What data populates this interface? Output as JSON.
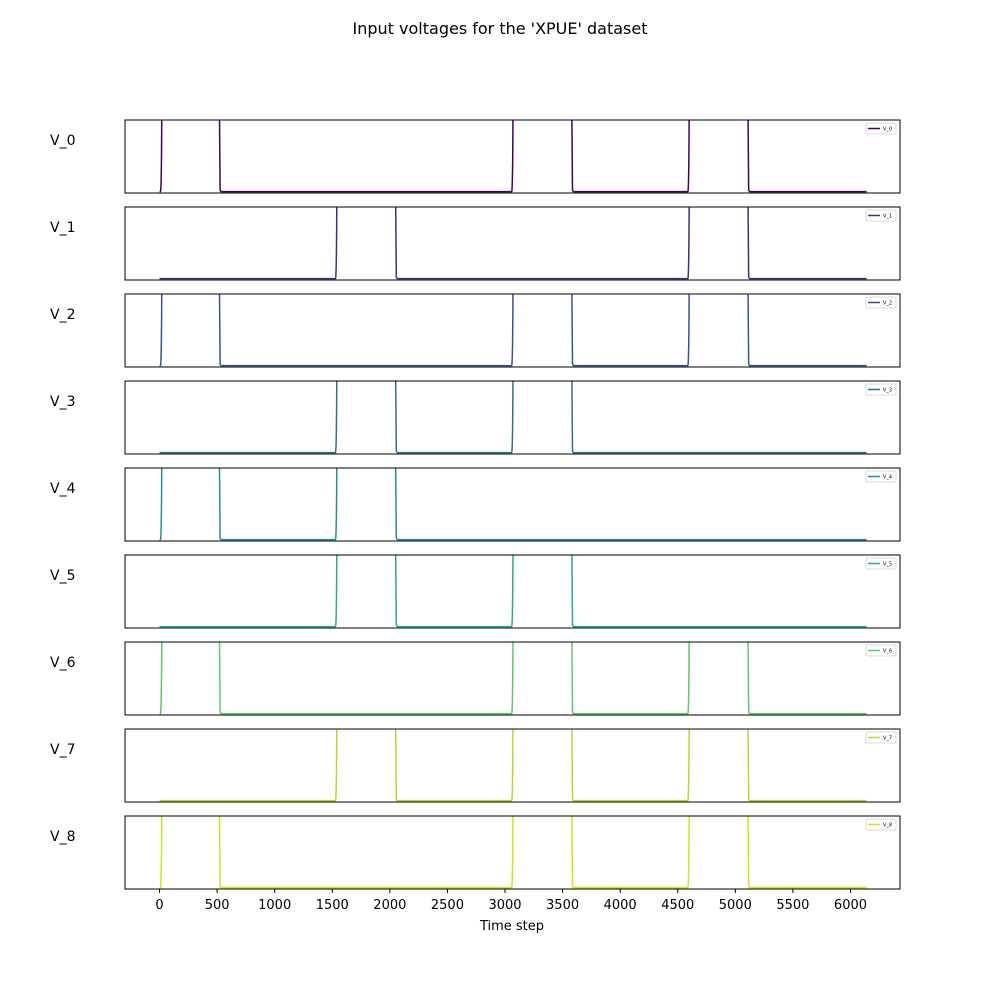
{
  "chart_data": {
    "type": "line",
    "title": "Input voltages for the 'XPUE' dataset",
    "xlabel": "Time step",
    "xlim": [
      -300,
      6430
    ],
    "ylim": [
      -0.02,
      1.0
    ],
    "grid": false,
    "legend_placement": "top-right",
    "xticks": [
      0,
      500,
      1000,
      1500,
      2000,
      2500,
      3000,
      3500,
      4000,
      4500,
      5000,
      5500,
      6000
    ],
    "x_start": 0,
    "x_end": 6140,
    "series": [
      {
        "name": "V_0",
        "color": "#440154",
        "pulses": [
          [
            20,
            520
          ],
          [
            3070,
            3580
          ],
          [
            4600,
            5110
          ]
        ]
      },
      {
        "name": "V_1",
        "color": "#472d7b",
        "pulses": [
          [
            1540,
            2050
          ],
          [
            4600,
            5110
          ]
        ]
      },
      {
        "name": "V_2",
        "color": "#3b528b",
        "pulses": [
          [
            20,
            520
          ],
          [
            3070,
            3580
          ],
          [
            4600,
            5110
          ]
        ]
      },
      {
        "name": "V_3",
        "color": "#2c728e",
        "pulses": [
          [
            1540,
            2050
          ],
          [
            3070,
            3580
          ]
        ]
      },
      {
        "name": "V_4",
        "color": "#21918c",
        "pulses": [
          [
            20,
            520
          ],
          [
            1540,
            2050
          ]
        ]
      },
      {
        "name": "V_5",
        "color": "#28ae80",
        "pulses": [
          [
            1540,
            2050
          ],
          [
            3070,
            3580
          ]
        ]
      },
      {
        "name": "V_6",
        "color": "#5ec962",
        "pulses": [
          [
            20,
            520
          ],
          [
            3070,
            3580
          ],
          [
            4600,
            5110
          ]
        ]
      },
      {
        "name": "V_7",
        "color": "#addc30",
        "pulses": [
          [
            1540,
            2050
          ],
          [
            3070,
            3580
          ],
          [
            4600,
            5110
          ]
        ]
      },
      {
        "name": "V_8",
        "color": "#d2e21b",
        "pulses": [
          [
            20,
            520
          ],
          [
            3070,
            3580
          ],
          [
            4600,
            5110
          ]
        ]
      }
    ]
  }
}
